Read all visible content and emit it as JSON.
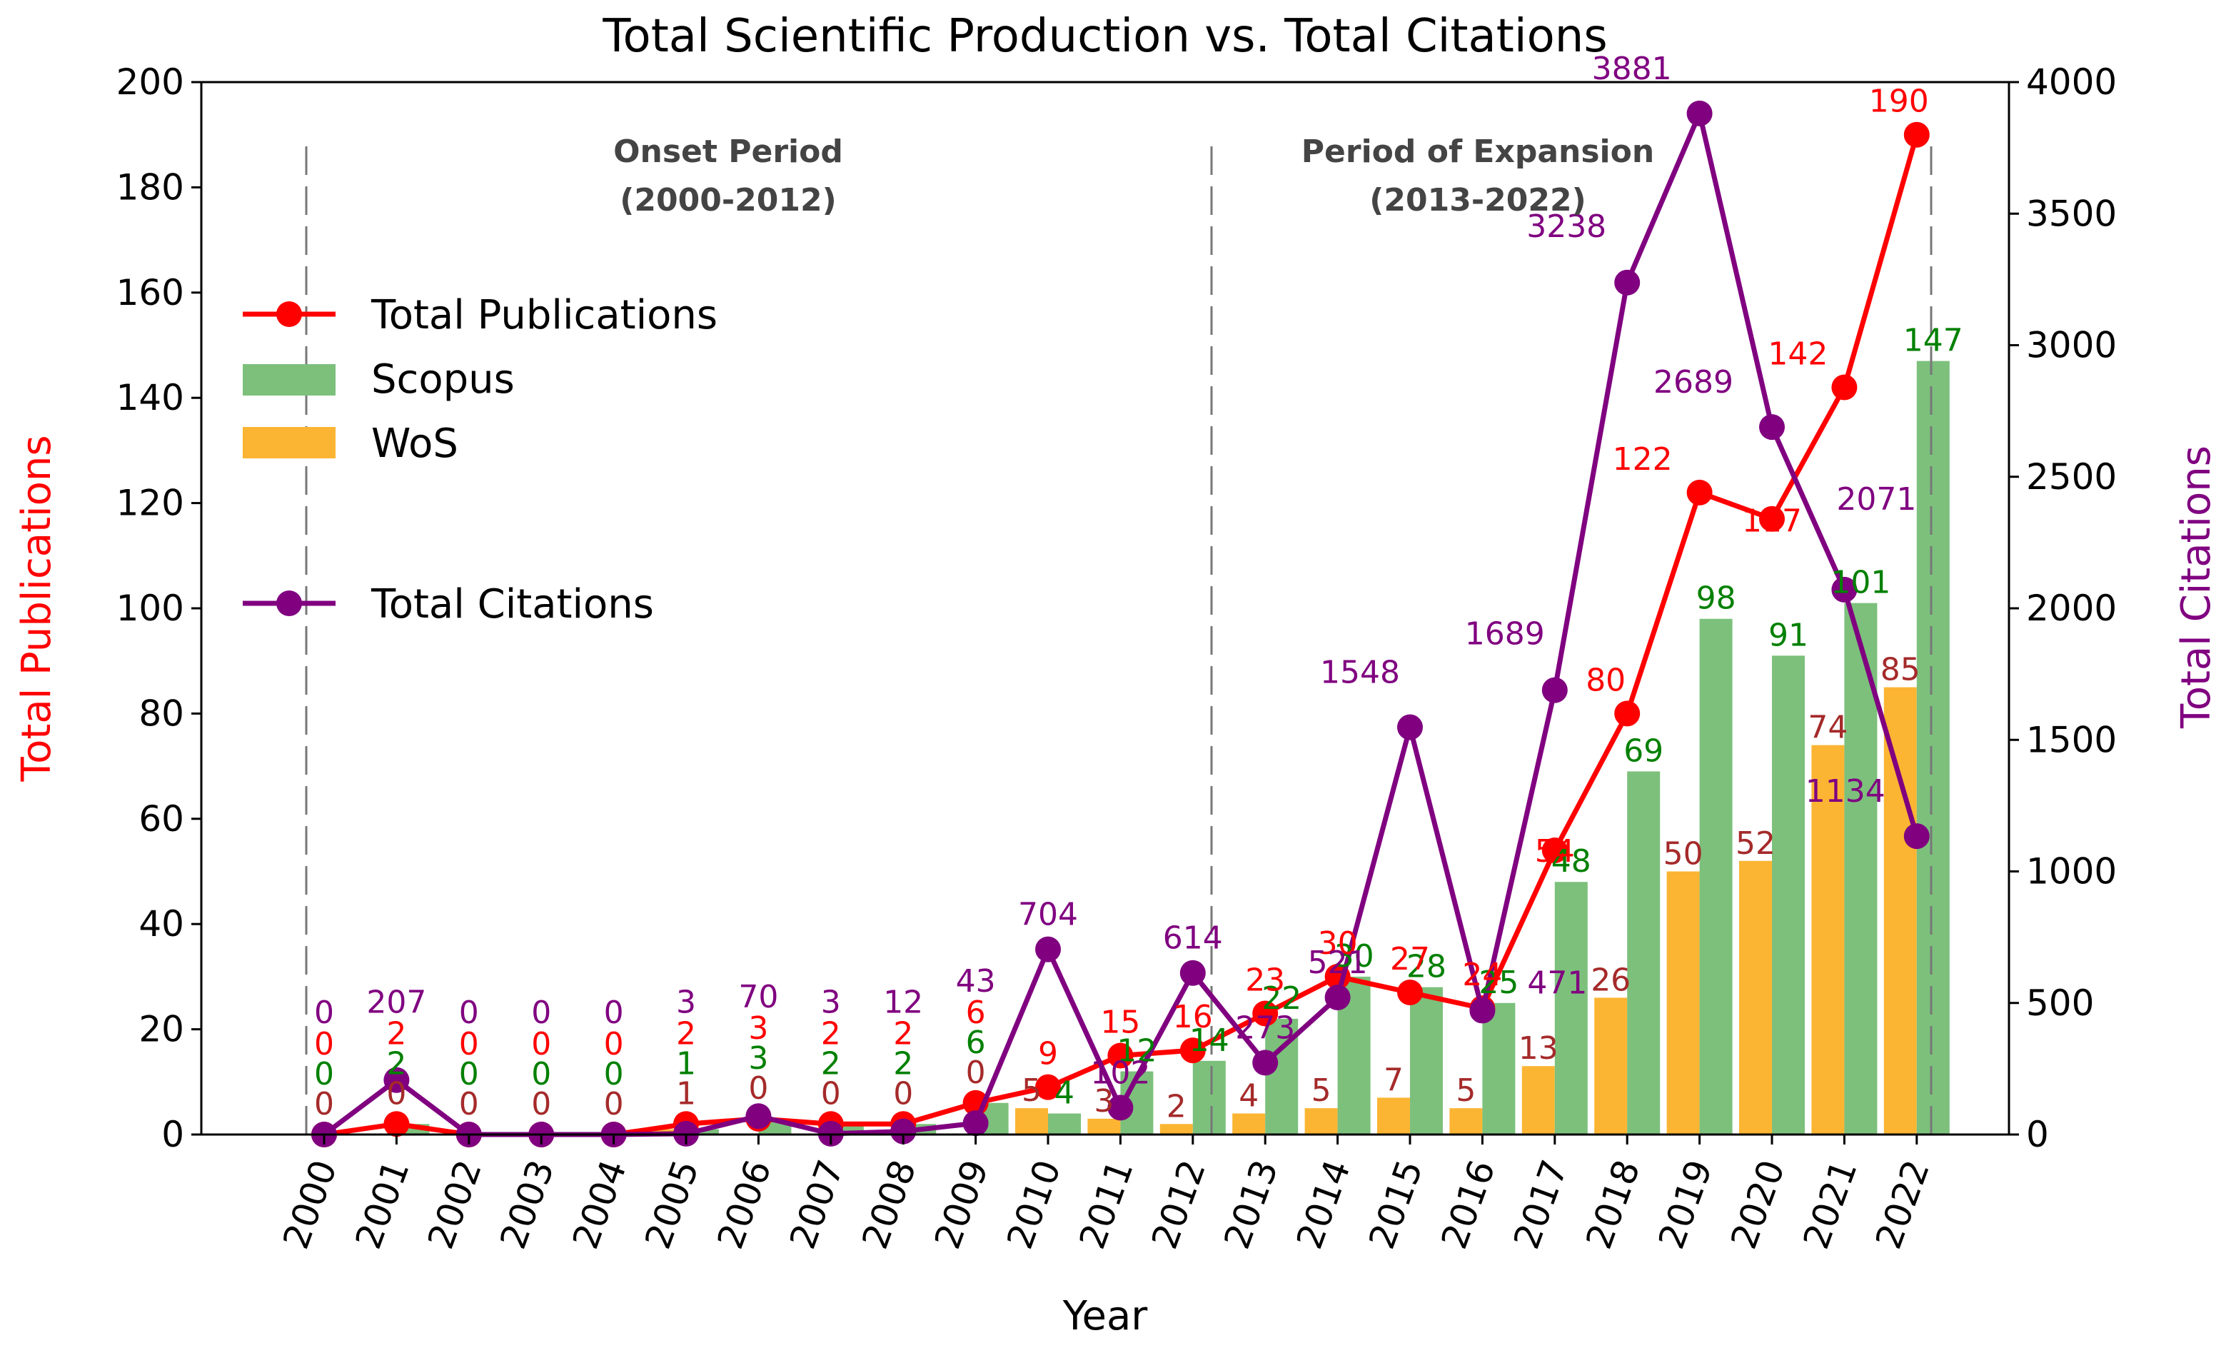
{
  "chart_data": {
    "type": "bar+line",
    "title": "Total Scientific Production vs. Total Citations",
    "xlabel": "Year",
    "ylabel_left": "Total Publications",
    "ylabel_right": "Total Citations",
    "ylim_left": [
      0,
      200
    ],
    "ylim_right": [
      0,
      4000
    ],
    "yticks_left": [
      "0",
      "20",
      "40",
      "60",
      "80",
      "100",
      "120",
      "140",
      "160",
      "180",
      "200"
    ],
    "yticks_right": [
      "0",
      "500",
      "1000",
      "1500",
      "2000",
      "2500",
      "3000",
      "3500",
      "4000"
    ],
    "categories": [
      "2000",
      "2001",
      "2002",
      "2003",
      "2004",
      "2005",
      "2006",
      "2007",
      "2008",
      "2009",
      "2010",
      "2011",
      "2012",
      "2013",
      "2014",
      "2015",
      "2016",
      "2017",
      "2018",
      "2019",
      "2020",
      "2021",
      "2022"
    ],
    "series": [
      {
        "name": "Total Publications",
        "kind": "line",
        "axis": "left",
        "color": "#ff0000",
        "values": [
          0,
          2,
          0,
          0,
          0,
          2,
          3,
          2,
          2,
          6,
          9,
          15,
          16,
          23,
          30,
          27,
          24,
          54,
          80,
          122,
          117,
          142,
          190
        ],
        "labels": [
          "0",
          "2",
          "0",
          "0",
          "0",
          "2",
          "3",
          "2",
          "2",
          "6",
          "9",
          "15",
          "16",
          "23",
          "30",
          "27",
          "24",
          "54",
          "80",
          "122",
          "117",
          "142",
          "190"
        ]
      },
      {
        "name": "Scopus",
        "kind": "bar",
        "axis": "left",
        "color": "#7cc07c",
        "values": [
          0,
          2,
          0,
          0,
          0,
          1,
          3,
          2,
          2,
          6,
          4,
          12,
          14,
          22,
          30,
          28,
          25,
          48,
          69,
          98,
          91,
          101,
          147
        ],
        "labels": [
          "0",
          "2",
          "0",
          "0",
          "0",
          "1",
          "3",
          "2",
          "2",
          "6",
          "4",
          "12",
          "14",
          "22",
          "30",
          "28",
          "25",
          "48",
          "69",
          "98",
          "91",
          "101",
          "147"
        ]
      },
      {
        "name": "WoS",
        "kind": "bar",
        "axis": "left",
        "color": "#fbb533",
        "values": [
          0,
          0,
          0,
          0,
          0,
          1,
          0,
          0,
          0,
          0,
          5,
          3,
          2,
          4,
          5,
          7,
          5,
          13,
          26,
          50,
          52,
          74,
          85
        ],
        "labels": [
          "0",
          "0",
          "0",
          "0",
          "0",
          "1",
          "0",
          "0",
          "0",
          "0",
          "5",
          "3",
          "2",
          "4",
          "5",
          "7",
          "5",
          "13",
          "26",
          "50",
          "52",
          "74",
          "85"
        ]
      },
      {
        "name": "Total Citations",
        "kind": "line",
        "axis": "right",
        "color": "#800080",
        "values": [
          0,
          207,
          0,
          0,
          0,
          3,
          70,
          3,
          12,
          43,
          704,
          102,
          614,
          273,
          521,
          1548,
          471,
          1689,
          3238,
          3881,
          2689,
          2071,
          1134
        ],
        "labels": [
          "0",
          "207",
          "0",
          "0",
          "0",
          "3",
          "70",
          "3",
          "12",
          "43",
          "704",
          "102",
          "614",
          "273",
          "521",
          "1548",
          "471",
          "1689",
          "3238",
          "3881",
          "2689",
          "2071",
          "1134"
        ]
      }
    ],
    "annotations": [
      {
        "line1": "Onset Period",
        "line2": "(2000-2012)"
      },
      {
        "line1": "Period of Expansion",
        "line2": "(2013-2022)"
      }
    ],
    "legend_position": "upper-left",
    "legend": [
      "Total Publications",
      "Scopus",
      "WoS",
      "Total Citations"
    ]
  }
}
